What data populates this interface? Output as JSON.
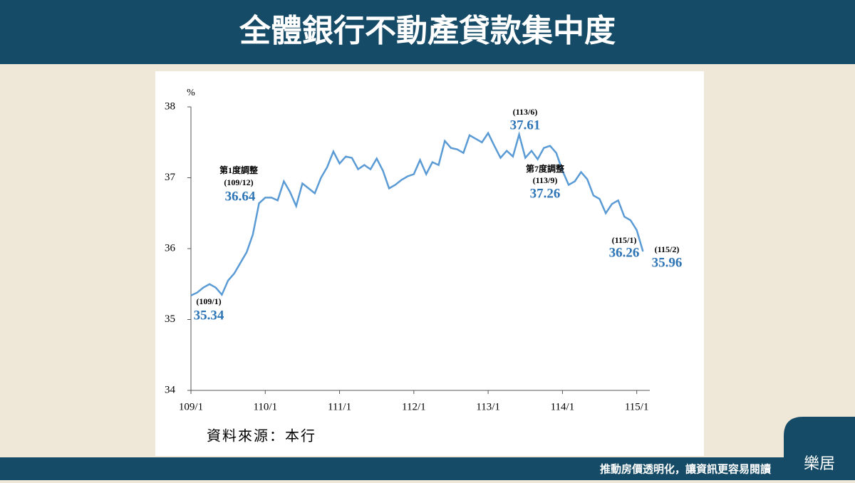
{
  "chart_data": {
    "type": "line",
    "title": "全體銀行不動產貸款集中度",
    "y_unit": "%",
    "source": "資料來源：本行",
    "categories": [
      "109/1",
      null,
      null,
      null,
      null,
      null,
      null,
      null,
      null,
      null,
      null,
      null,
      "110/1",
      null,
      null,
      null,
      null,
      null,
      null,
      null,
      null,
      null,
      null,
      null,
      "111/1",
      null,
      null,
      null,
      null,
      null,
      null,
      null,
      null,
      null,
      null,
      null,
      "112/1",
      null,
      null,
      null,
      null,
      null,
      null,
      null,
      null,
      null,
      null,
      null,
      "113/1",
      null,
      null,
      null,
      null,
      null,
      null,
      null,
      null,
      null,
      null,
      null,
      "114/1",
      null,
      null,
      null,
      null,
      null,
      null,
      null,
      null,
      null,
      null,
      null,
      "115/1",
      null
    ],
    "values": [
      35.34,
      35.38,
      35.45,
      35.5,
      35.45,
      35.35,
      35.55,
      35.65,
      35.8,
      35.95,
      36.2,
      36.64,
      36.72,
      36.72,
      36.68,
      36.95,
      36.8,
      36.6,
      36.92,
      36.85,
      36.78,
      37.0,
      37.15,
      37.37,
      37.2,
      37.3,
      37.28,
      37.12,
      37.18,
      37.12,
      37.27,
      37.1,
      36.85,
      36.9,
      36.97,
      37.02,
      37.05,
      37.25,
      37.05,
      37.22,
      37.18,
      37.52,
      37.42,
      37.4,
      37.35,
      37.6,
      37.55,
      37.5,
      37.63,
      37.45,
      37.28,
      37.38,
      37.3,
      37.61,
      37.28,
      37.38,
      37.26,
      37.42,
      37.45,
      37.35,
      37.1,
      36.9,
      36.95,
      37.08,
      36.98,
      36.75,
      36.7,
      36.5,
      36.63,
      36.68,
      36.45,
      36.4,
      36.26,
      35.96
    ],
    "point_labels": [
      [
        "(109/1)"
      ],
      null,
      null,
      null,
      null,
      null,
      null,
      null,
      null,
      null,
      null,
      [
        "第1度調整",
        "(109/12)"
      ],
      null,
      null,
      null,
      null,
      null,
      null,
      null,
      null,
      null,
      null,
      null,
      null,
      null,
      null,
      null,
      null,
      null,
      null,
      null,
      null,
      null,
      null,
      null,
      null,
      null,
      null,
      null,
      null,
      null,
      null,
      null,
      null,
      null,
      null,
      null,
      null,
      null,
      null,
      null,
      null,
      null,
      [
        "(113/6)"
      ],
      null,
      null,
      [
        "第7度調整",
        "(113/9)"
      ],
      null,
      null,
      null,
      null,
      null,
      null,
      null,
      null,
      null,
      null,
      null,
      null,
      null,
      null,
      null,
      [
        "(115/1)"
      ],
      [
        "(115/2)"
      ]
    ],
    "color": "#5b9bd5",
    "ylim": [
      34,
      38
    ],
    "yticks": [
      34,
      35,
      36,
      37,
      38
    ]
  },
  "footer": {
    "slogan": "推動房價透明化，讓資訊更容易閱讀",
    "logo": "樂居"
  }
}
